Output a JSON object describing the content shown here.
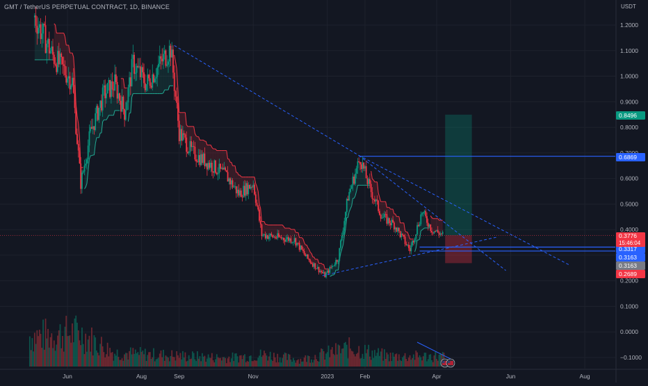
{
  "header": {
    "symbol_title": "GMT / TetherUS PERPETUAL CONTRACT, 1D, BINANCE",
    "currency": "USDT"
  },
  "price_axis": {
    "ticks": [
      {
        "label": "1.2000",
        "value": 1.2
      },
      {
        "label": "1.1000",
        "value": 1.1
      },
      {
        "label": "1.0000",
        "value": 1.0
      },
      {
        "label": "0.9000",
        "value": 0.9
      },
      {
        "label": "0.8000",
        "value": 0.8
      },
      {
        "label": "0.7000",
        "value": 0.7
      },
      {
        "label": "0.6000",
        "value": 0.6
      },
      {
        "label": "0.5000",
        "value": 0.5
      },
      {
        "label": "0.4000",
        "value": 0.4
      },
      {
        "label": "0.3000",
        "value": 0.3
      },
      {
        "label": "0.2000",
        "value": 0.2
      },
      {
        "label": "0.1000",
        "value": 0.1
      },
      {
        "label": "0.0000",
        "value": 0.0
      },
      {
        "label": "−0.1000",
        "value": -0.1
      }
    ]
  },
  "time_axis": {
    "labels": [
      {
        "label": "Jun",
        "date": "2022-06-01"
      },
      {
        "label": "Aug",
        "date": "2022-08-01"
      },
      {
        "label": "Sep",
        "date": "2022-09-01"
      },
      {
        "label": "Nov",
        "date": "2022-11-01"
      },
      {
        "label": "2023",
        "date": "2023-01-01"
      },
      {
        "label": "Feb",
        "date": "2023-02-01"
      },
      {
        "label": "Apr",
        "date": "2023-04-01"
      },
      {
        "label": "Jun",
        "date": "2023-06-01"
      },
      {
        "label": "Aug",
        "date": "2023-08-01"
      }
    ]
  },
  "price_badges": [
    {
      "label": "0.8496",
      "value": 0.8496,
      "color": "#089981"
    },
    {
      "label": "0.6869",
      "value": 0.6869,
      "color": "#2962ff"
    },
    {
      "label": "0.3317",
      "value": 0.3317,
      "color": "#2962ff"
    },
    {
      "label": "0.3163",
      "value": 0.3163,
      "color": "#2962ff"
    },
    {
      "label": "0.3163",
      "value": 0.3163,
      "color": "#787b86"
    },
    {
      "label": "0.2689",
      "value": 0.2689,
      "color": "#f23645"
    }
  ],
  "last_price": {
    "label": "0.3776",
    "countdown": "15:46:04",
    "value": 0.3776,
    "color": "#f23645"
  },
  "colors": {
    "background": "#131722",
    "grid": "#1e222d",
    "up": "#089981",
    "down": "#f23645",
    "trendline": "#2962ff",
    "supertrend_up": "#22ab94",
    "supertrend_down": "#f23645"
  },
  "chart_data": {
    "type": "candlestick",
    "title": "GMT / TetherUS PERPETUAL CONTRACT, 1D, BINANCE",
    "y_unit": "USDT",
    "ylim": [
      -0.1,
      1.2
    ],
    "x_range": [
      "2022-05-01",
      "2023-09-01"
    ],
    "series": [
      {
        "name": "",
        "type": "line-approx-price",
        "points": [
          {
            "x": "2022-05-05",
            "y": 1.23
          },
          {
            "x": "2022-05-20",
            "y": 1.08
          },
          {
            "x": "2022-06-05",
            "y": 0.98
          },
          {
            "x": "2022-06-12",
            "y": 0.58
          },
          {
            "x": "2022-06-20",
            "y": 0.78
          },
          {
            "x": "2022-07-01",
            "y": 0.93
          },
          {
            "x": "2022-07-10",
            "y": 0.97
          },
          {
            "x": "2022-07-18",
            "y": 0.86
          },
          {
            "x": "2022-07-25",
            "y": 1.05
          },
          {
            "x": "2022-08-05",
            "y": 0.97
          },
          {
            "x": "2022-08-15",
            "y": 1.04
          },
          {
            "x": "2022-08-25",
            "y": 1.11
          },
          {
            "x": "2022-09-01",
            "y": 0.78
          },
          {
            "x": "2022-09-12",
            "y": 0.7
          },
          {
            "x": "2022-09-25",
            "y": 0.66
          },
          {
            "x": "2022-10-10",
            "y": 0.61
          },
          {
            "x": "2022-10-20",
            "y": 0.54
          },
          {
            "x": "2022-11-01",
            "y": 0.58
          },
          {
            "x": "2022-11-08",
            "y": 0.38
          },
          {
            "x": "2022-11-20",
            "y": 0.37
          },
          {
            "x": "2022-12-05",
            "y": 0.36
          },
          {
            "x": "2022-12-15",
            "y": 0.29
          },
          {
            "x": "2022-12-30",
            "y": 0.22
          },
          {
            "x": "2023-01-10",
            "y": 0.29
          },
          {
            "x": "2023-01-18",
            "y": 0.53
          },
          {
            "x": "2023-01-28",
            "y": 0.68
          },
          {
            "x": "2023-02-05",
            "y": 0.56
          },
          {
            "x": "2023-02-15",
            "y": 0.45
          },
          {
            "x": "2023-02-25",
            "y": 0.42
          },
          {
            "x": "2023-03-10",
            "y": 0.32
          },
          {
            "x": "2023-03-20",
            "y": 0.47
          },
          {
            "x": "2023-03-28",
            "y": 0.4
          },
          {
            "x": "2023-04-06",
            "y": 0.38
          }
        ]
      }
    ],
    "trendlines": [
      {
        "from": {
          "x": "2022-08-28",
          "y": 1.12
        },
        "to": {
          "x": "2023-01-27",
          "y": 0.69
        },
        "style": "dashed"
      },
      {
        "from": {
          "x": "2023-01-27",
          "y": 0.69
        },
        "to": {
          "x": "2023-07-20",
          "y": 0.26
        },
        "style": "dashed"
      },
      {
        "from": {
          "x": "2023-01-27",
          "y": 0.69
        },
        "to": {
          "x": "2023-05-28",
          "y": 0.24
        },
        "style": "dashed"
      },
      {
        "from": {
          "x": "2022-12-28",
          "y": 0.22
        },
        "to": {
          "x": "2023-05-20",
          "y": 0.37
        },
        "style": "dashed"
      }
    ],
    "horizontal_levels": [
      0.6869,
      0.3317,
      0.3163
    ],
    "position_tool": {
      "entry": 0.3776,
      "target": 0.8496,
      "stop": 0.2689,
      "from": "2023-04-08",
      "to": "2023-04-30"
    },
    "volume": {
      "note": "histogram bars near bottom of pane",
      "points": [
        {
          "x": "2022-05-10",
          "v": 0.9
        },
        {
          "x": "2022-06-10",
          "v": 1.0
        },
        {
          "x": "2022-07-10",
          "v": 0.4
        },
        {
          "x": "2022-08-10",
          "v": 0.35
        },
        {
          "x": "2022-09-10",
          "v": 0.3
        },
        {
          "x": "2022-10-10",
          "v": 0.25
        },
        {
          "x": "2022-11-10",
          "v": 0.35
        },
        {
          "x": "2022-12-10",
          "v": 0.2
        },
        {
          "x": "2023-01-20",
          "v": 0.55
        },
        {
          "x": "2023-02-20",
          "v": 0.3
        },
        {
          "x": "2023-03-20",
          "v": 0.3
        }
      ]
    }
  }
}
